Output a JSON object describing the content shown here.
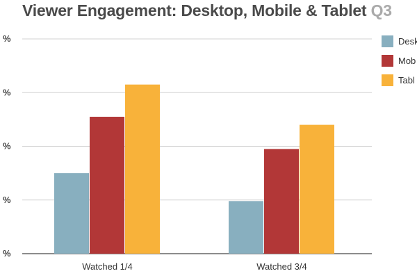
{
  "title": "Viewer Engagement: Desktop, Mobile & Tablet",
  "title_suffix": "Q3",
  "chart_data": {
    "type": "bar",
    "categories": [
      "Watched 1/4",
      "Watched 3/4"
    ],
    "series": [
      {
        "name": "Desk",
        "color": "#88afbf",
        "values": [
          15,
          9.8
        ]
      },
      {
        "name": "Mob",
        "color": "#b23737",
        "values": [
          25.5,
          19.5
        ]
      },
      {
        "name": "Tabl",
        "color": "#f8b23a",
        "values": [
          31.5,
          24
        ]
      }
    ],
    "y_ticks": [
      "%",
      "%",
      "%",
      "%",
      "%"
    ],
    "ylim": [
      0,
      40
    ],
    "grid": true,
    "legend": "right"
  }
}
